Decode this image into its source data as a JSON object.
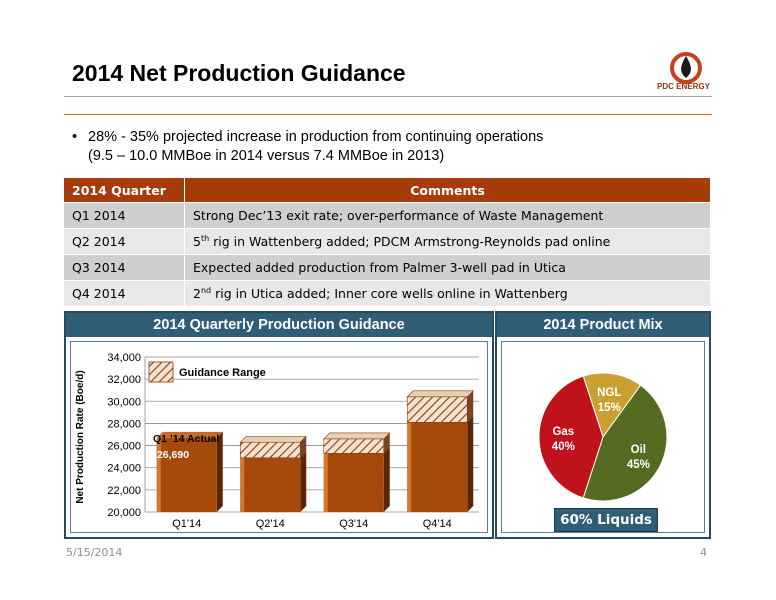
{
  "slide": {
    "title": "2014 Net Production Guidance",
    "logo_text": "PDC ENERGY",
    "bullet_line1": "28% - 35% projected increase in production from continuing operations",
    "bullet_line2": "(9.5 – 10.0 MMBoe in 2014 versus 7.4 MMBoe in 2013)",
    "footer_date": "5/15/2014",
    "page_number": "4"
  },
  "table": {
    "headers": [
      "2014 Quarter",
      "Comments"
    ],
    "rows": [
      {
        "quarter": "Q1 2014",
        "comment": "Strong Dec’13 exit rate; over-performance of Waste Management"
      },
      {
        "quarter": "Q2 2014",
        "comment_pre": "5",
        "comment_sup": "th",
        "comment_post": " rig in Wattenberg  added; PDCM Armstrong-Reynolds pad online"
      },
      {
        "quarter": "Q3 2014",
        "comment": "Expected added production from Palmer 3-well pad in Utica"
      },
      {
        "quarter": "Q4 2014",
        "comment_pre": "2",
        "comment_sup": "nd",
        "comment_post": " rig in Utica added; Inner core wells online in Wattenberg"
      }
    ]
  },
  "colors": {
    "header_brown": "#a63c0b",
    "panel_blue": "#2f5e76",
    "bar_orange": "#a64a0c",
    "gas_red": "#c0121b",
    "oil_green": "#556b22",
    "ngl_gold": "#c9a030"
  },
  "chart_data": [
    {
      "type": "bar",
      "title": "2014 Quarterly Production Guidance",
      "ylabel": "Net Production Rate (Boe/d)",
      "categories": [
        "Q1'14",
        "Q2'14",
        "Q3'14",
        "Q4'14"
      ],
      "yticks": [
        "34,000",
        "32,000",
        "30,000",
        "28,000",
        "26,000",
        "24,000",
        "22,000",
        "20,000"
      ],
      "ylim": [
        20000,
        34000
      ],
      "series": [
        {
          "values": [
            26690,
            24900,
            25300,
            28100
          ]
        },
        {
          "name": "Guidance Range",
          "low": [
            null,
            24900,
            25300,
            28100
          ],
          "high": [
            null,
            26300,
            26600,
            30400
          ]
        }
      ],
      "annotations": {
        "q1_label": "Q1 ’14 Actual",
        "q1_value": "26,690"
      },
      "legend": "top-left"
    },
    {
      "type": "pie",
      "title": "2014 Product Mix",
      "slices": [
        {
          "name": "NGL",
          "value": 15,
          "label": "15%"
        },
        {
          "name": "Oil",
          "value": 45,
          "label": "45%"
        },
        {
          "name": "Gas",
          "value": 40,
          "label": "40%"
        }
      ],
      "badge": "60% Liquids"
    }
  ]
}
